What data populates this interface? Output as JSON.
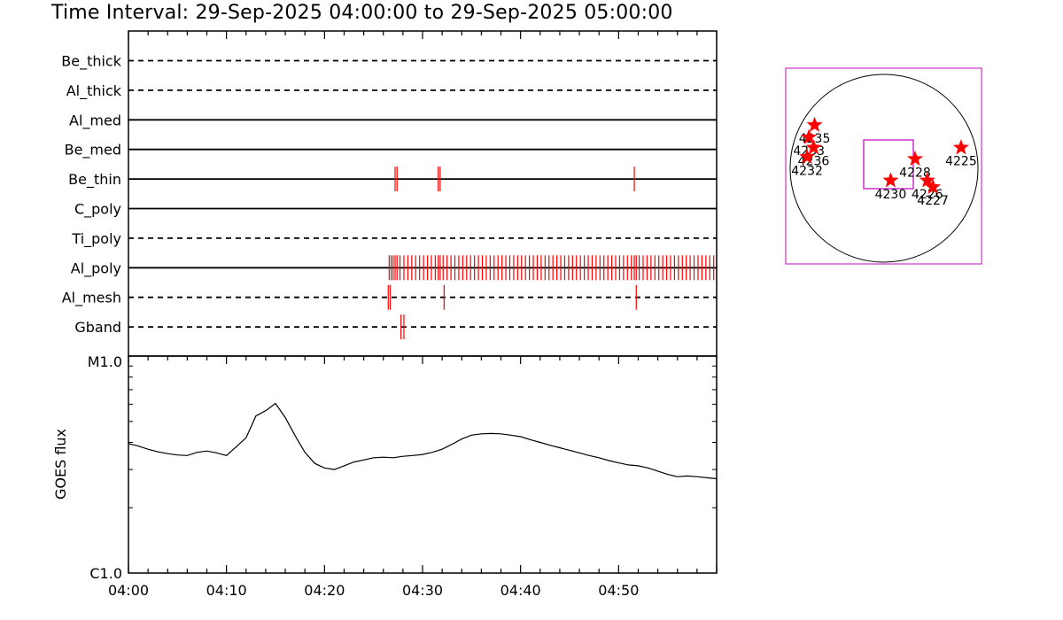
{
  "title": "Time Interval: 29-Sep-2025 04:00:00 to 29-Sep-2025 05:00:00",
  "chart_data": [
    {
      "type": "event-timeline",
      "x_range_minutes": [
        0,
        60
      ],
      "x_start_time": "04:00",
      "channels": [
        {
          "name": "Be_thick",
          "style": "dashed",
          "events": []
        },
        {
          "name": "Al_thick",
          "style": "dashed",
          "events": []
        },
        {
          "name": "Al_med",
          "style": "solid",
          "events": []
        },
        {
          "name": "Be_med",
          "style": "solid",
          "events": []
        },
        {
          "name": "Be_thin",
          "style": "solid",
          "events": [
            27.2,
            27.4,
            31.6,
            31.8,
            51.6
          ]
        },
        {
          "name": "C_poly",
          "style": "solid",
          "events": []
        },
        {
          "name": "Ti_poly",
          "style": "dashed",
          "events": []
        },
        {
          "name": "Al_poly",
          "style": "solid",
          "events": [
            26.6,
            26.8,
            27.0,
            27.2,
            27.4,
            27.7,
            28.1,
            28.5,
            28.9,
            29.3,
            29.7,
            30.1,
            30.5,
            30.9,
            31.3,
            31.6,
            31.8,
            32.1,
            32.5,
            32.9,
            33.3,
            33.7,
            34.1,
            34.5,
            34.9,
            35.3,
            35.7,
            36.1,
            36.5,
            36.9,
            37.3,
            37.7,
            38.1,
            38.5,
            38.9,
            39.3,
            39.7,
            40.1,
            40.5,
            40.9,
            41.3,
            41.7,
            42.1,
            42.5,
            42.9,
            43.3,
            43.7,
            44.1,
            44.5,
            44.9,
            45.3,
            45.7,
            46.1,
            46.5,
            46.9,
            47.3,
            47.7,
            48.1,
            48.5,
            48.9,
            49.3,
            49.7,
            50.1,
            50.5,
            50.9,
            51.3,
            51.6,
            51.8,
            52.1,
            52.5,
            52.9,
            53.3,
            53.7,
            54.1,
            54.5,
            54.9,
            55.3,
            55.7,
            56.1,
            56.5,
            56.9,
            57.3,
            57.7,
            58.1,
            58.5,
            58.9,
            59.3,
            59.7
          ]
        },
        {
          "name": "Al_mesh",
          "style": "dashed",
          "events": [
            26.5,
            26.7,
            32.2,
            51.8
          ]
        },
        {
          "name": "Gband",
          "style": "dashed",
          "events": [
            27.8,
            28.1
          ]
        }
      ]
    },
    {
      "type": "line",
      "ylabel": "GOES flux",
      "yscale": "log",
      "ylim": [
        1e-06,
        1e-05
      ],
      "ytick_labels": [
        "C1.0",
        "M1.0"
      ],
      "x_tick_labels": [
        "04:00",
        "04:10",
        "04:20",
        "04:30",
        "04:40",
        "04:50"
      ],
      "x_ticks_minutes": [
        0,
        10,
        20,
        30,
        40,
        50
      ],
      "x": [
        0,
        1,
        2,
        3,
        4,
        5,
        6,
        7,
        8,
        9,
        10,
        11,
        12,
        13,
        14,
        15,
        16,
        17,
        18,
        19,
        20,
        21,
        22,
        23,
        24,
        25,
        26,
        27,
        28,
        29,
        30,
        31,
        32,
        33,
        34,
        35,
        36,
        37,
        38,
        39,
        40,
        41,
        42,
        43,
        44,
        45,
        46,
        47,
        48,
        49,
        50,
        51,
        52,
        53,
        54,
        55,
        56,
        57,
        58,
        59,
        60
      ],
      "y": [
        3.95e-06,
        3.85e-06,
        3.72e-06,
        3.62e-06,
        3.55e-06,
        3.5e-06,
        3.48e-06,
        3.6e-06,
        3.65e-06,
        3.58e-06,
        3.48e-06,
        3.82e-06,
        4.2e-06,
        5.3e-06,
        5.6e-06,
        6.05e-06,
        5.2e-06,
        4.3e-06,
        3.6e-06,
        3.2e-06,
        3.05e-06,
        3e-06,
        3.12e-06,
        3.25e-06,
        3.32e-06,
        3.4e-06,
        3.42e-06,
        3.4e-06,
        3.45e-06,
        3.48e-06,
        3.52e-06,
        3.6e-06,
        3.72e-06,
        3.92e-06,
        4.15e-06,
        4.32e-06,
        4.38e-06,
        4.4e-06,
        4.38e-06,
        4.32e-06,
        4.25e-06,
        4.12e-06,
        4e-06,
        3.88e-06,
        3.78e-06,
        3.68e-06,
        3.58e-06,
        3.48e-06,
        3.4e-06,
        3.3e-06,
        3.22e-06,
        3.15e-06,
        3.12e-06,
        3.05e-06,
        2.95e-06,
        2.85e-06,
        2.78e-06,
        2.8e-06,
        2.78e-06,
        2.75e-06,
        2.72e-06
      ]
    },
    {
      "type": "scatter",
      "description": "solar disk with active regions",
      "points": [
        {
          "label": "4235",
          "x": -0.74,
          "y": 0.46
        },
        {
          "label": "4233",
          "x": -0.8,
          "y": 0.33
        },
        {
          "label": "4236",
          "x": -0.75,
          "y": 0.22
        },
        {
          "label": "4232",
          "x": -0.82,
          "y": 0.12
        },
        {
          "label": "4228",
          "x": 0.33,
          "y": 0.1
        },
        {
          "label": "4225",
          "x": 0.82,
          "y": 0.22
        },
        {
          "label": "4230",
          "x": 0.07,
          "y": -0.13
        },
        {
          "label": "4226",
          "x": 0.46,
          "y": -0.13
        },
        {
          "label": "4227",
          "x": 0.52,
          "y": -0.2
        }
      ]
    }
  ]
}
